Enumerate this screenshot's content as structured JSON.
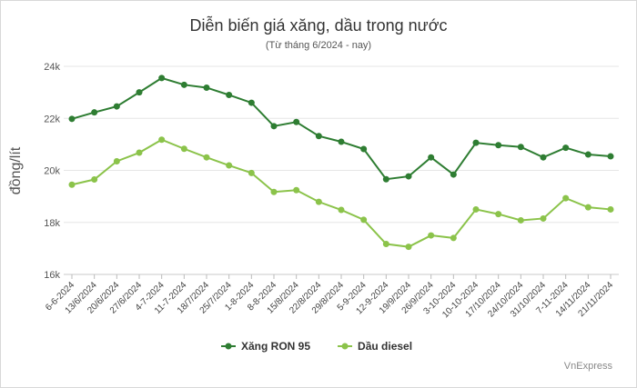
{
  "chart_data": {
    "type": "line",
    "title": "Diễn biến giá xăng, dầu trong nước",
    "subtitle": "(Từ tháng 6/2024 - nay)",
    "xlabel": "",
    "ylabel": "đồng/lít",
    "ylim": [
      16000,
      24000
    ],
    "y_ticks": [
      16000,
      18000,
      20000,
      22000,
      24000
    ],
    "y_tick_labels": [
      "16k",
      "18k",
      "20k",
      "22k",
      "24k"
    ],
    "grid": true,
    "legend_position": "bottom",
    "categories": [
      "6-6-2024",
      "13/6/2024",
      "20/6/2024",
      "27/6/2024",
      "4-7-2024",
      "11-7-2024",
      "18/7/2024",
      "25/7/2024",
      "1-8-2024",
      "8-8-2024",
      "15/8/2024",
      "22/8/2024",
      "29/8/2024",
      "5-9-2024",
      "12-9-2024",
      "19/9/2024",
      "26/9/2024",
      "3-10-2024",
      "10-10-2024",
      "17/10/2024",
      "24/10/2024",
      "31/10/2024",
      "7-11-2024",
      "14/11/2024",
      "21/11/2024"
    ],
    "series": [
      {
        "name": "Xăng RON 95",
        "color": "#2e7d32",
        "values": [
          21980,
          22230,
          22460,
          23000,
          23550,
          23290,
          23180,
          22900,
          22600,
          21700,
          21860,
          21320,
          21100,
          20820,
          19660,
          19770,
          20500,
          19840,
          21060,
          20970,
          20900,
          20500,
          20870,
          20610,
          20540
        ]
      },
      {
        "name": "Dầu diesel",
        "color": "#8bc34a",
        "values": [
          19450,
          19650,
          20350,
          20680,
          21180,
          20830,
          20500,
          20190,
          19900,
          19170,
          19240,
          18790,
          18480,
          18100,
          17170,
          17060,
          17500,
          17400,
          18500,
          18320,
          18080,
          18150,
          18930,
          18580,
          18500
        ]
      }
    ]
  },
  "source": "VnExpress"
}
